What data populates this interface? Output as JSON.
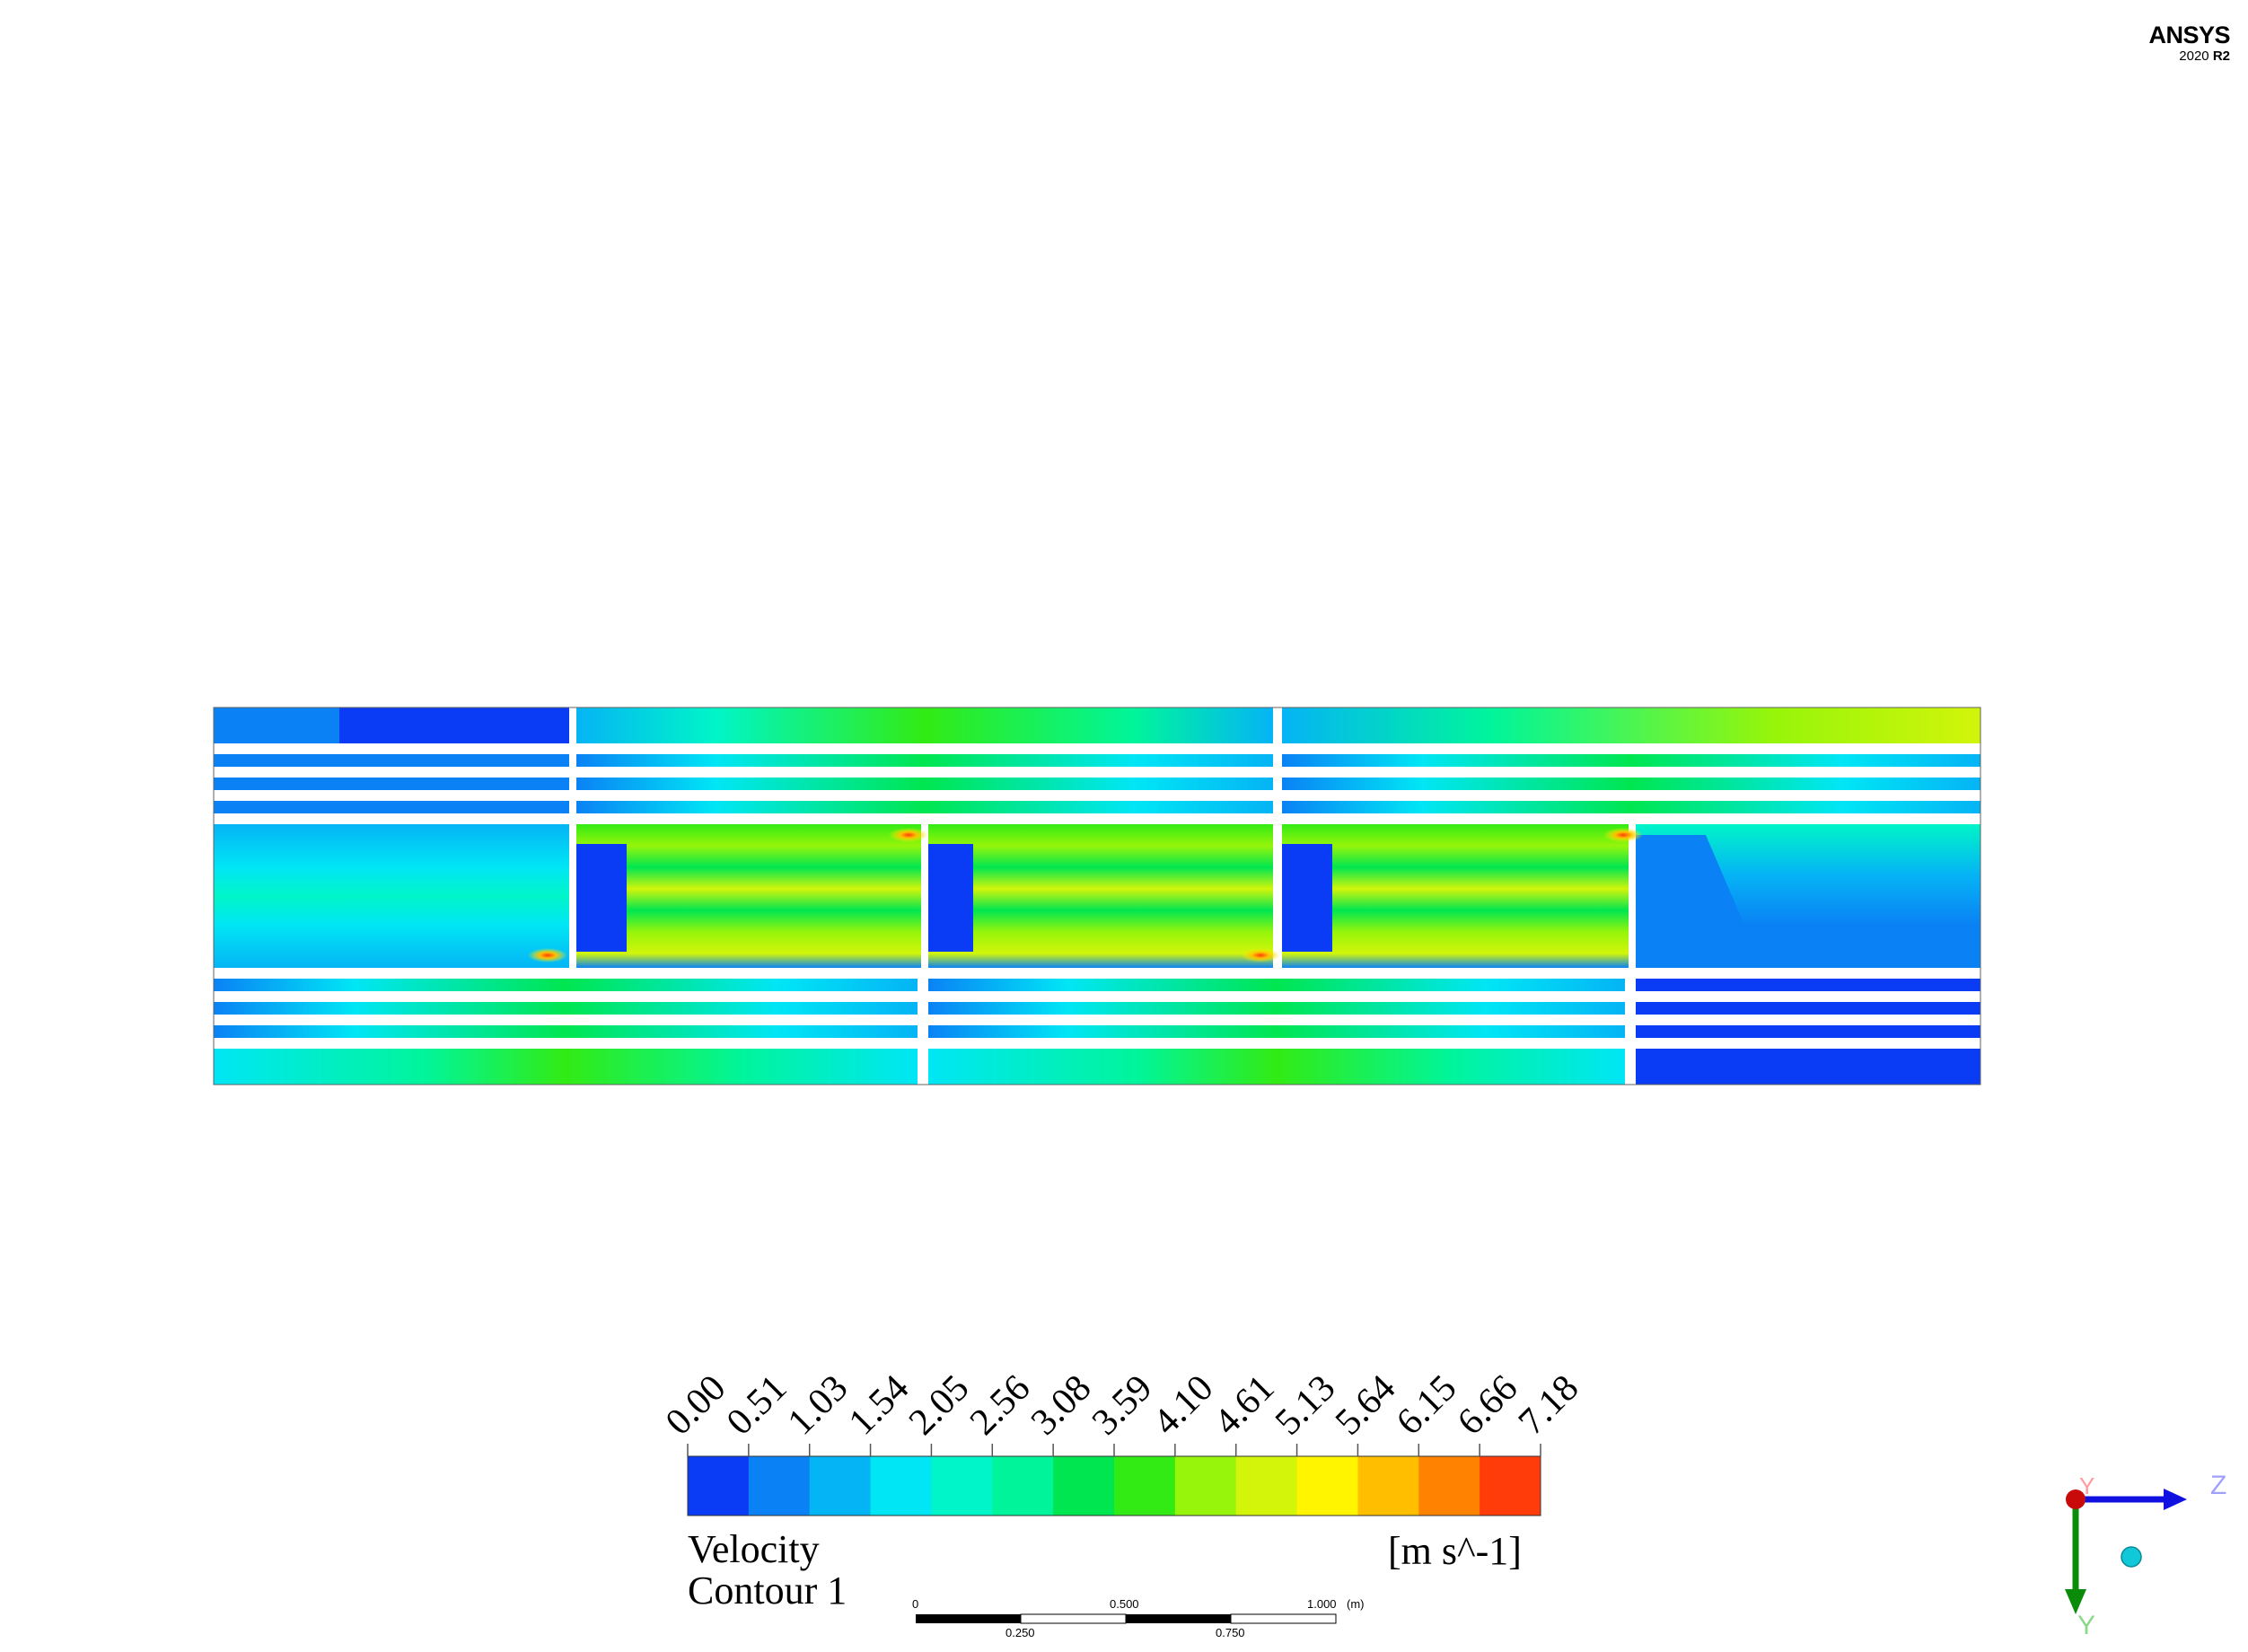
{
  "brand": {
    "name": "ANSYS",
    "version": "2020",
    "release": "R2"
  },
  "legend": {
    "title_line1": "Velocity",
    "title_line2": "Contour 1",
    "units": "[m s^-1]",
    "ticks": [
      "0.00",
      "0.51",
      "1.03",
      "1.54",
      "2.05",
      "2.56",
      "3.08",
      "3.59",
      "4.10",
      "4.61",
      "5.13",
      "5.64",
      "6.15",
      "6.66",
      "7.18"
    ],
    "colors": [
      "#0a3cf5",
      "#0a82f5",
      "#05b4f5",
      "#00e6f5",
      "#00f5c8",
      "#00f59b",
      "#00e650",
      "#32eb14",
      "#96f50a",
      "#d2f50a",
      "#fff500",
      "#ffbe00",
      "#ff8200",
      "#ff3c0a"
    ]
  },
  "scale_bar": {
    "unit": "(m)",
    "top_labels": [
      "0",
      "0.500",
      "1.000"
    ],
    "bottom_labels": [
      "0.250",
      "0.750"
    ]
  },
  "axes": {
    "y_label": "Y",
    "z_label": "Z",
    "y_color": "#0a8c0a",
    "z_color": "#1010e0",
    "origin_color": "#c80a0a",
    "iso_color": "#10c8d8"
  }
}
